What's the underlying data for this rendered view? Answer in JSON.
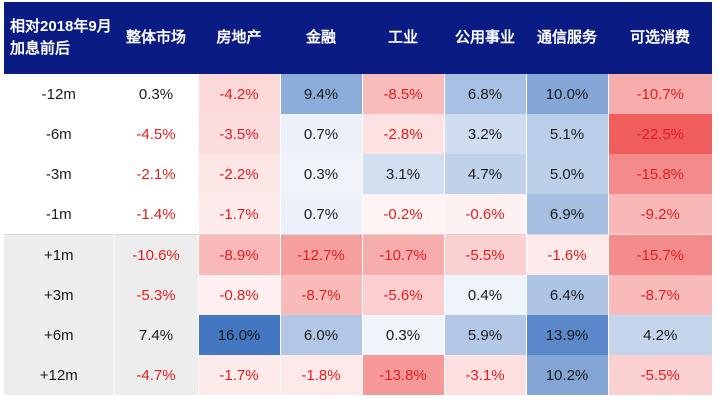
{
  "chart_data": {
    "type": "heatmap",
    "title": "",
    "corner_label": "相对2018年9月加息前后",
    "columns": [
      "整体市场",
      "房地产",
      "金融",
      "工业",
      "公用事业",
      "通信服务",
      "可选消费"
    ],
    "rows": [
      {
        "label": "-12m",
        "values": [
          0.3,
          -4.2,
          9.4,
          -8.5,
          6.8,
          10.0,
          -10.7
        ]
      },
      {
        "label": "-6m",
        "values": [
          -4.5,
          -3.5,
          0.7,
          -2.8,
          3.2,
          5.1,
          -22.5
        ]
      },
      {
        "label": "-3m",
        "values": [
          -2.1,
          -2.2,
          0.3,
          3.1,
          4.7,
          5.0,
          -15.8
        ]
      },
      {
        "label": "-1m",
        "values": [
          -1.4,
          -1.7,
          0.7,
          -0.2,
          -0.6,
          6.9,
          -9.2
        ]
      },
      {
        "label": "+1m",
        "values": [
          -10.6,
          -8.9,
          -12.7,
          -10.7,
          -5.5,
          -1.6,
          -15.7
        ]
      },
      {
        "label": "+3m",
        "values": [
          -5.3,
          -0.8,
          -8.7,
          -5.6,
          0.4,
          6.4,
          -8.7
        ]
      },
      {
        "label": "+6m",
        "values": [
          7.4,
          16.0,
          6.0,
          0.3,
          5.9,
          13.9,
          4.2
        ]
      },
      {
        "label": "+12m",
        "values": [
          -4.7,
          -1.7,
          -1.8,
          -13.8,
          -3.1,
          10.2,
          -5.5
        ]
      }
    ],
    "unit": "%",
    "shaded_rows": [
      "+1m",
      "+3m",
      "+6m",
      "+12m"
    ],
    "color_scale": {
      "neg_max": -22.5,
      "pos_max": 16.0,
      "neg_color": "#f05a5a",
      "pos_color": "#3f74c0",
      "neutral_color": "#ffffff"
    },
    "uncolored_columns": [
      "整体市场"
    ]
  },
  "colors": {
    "header_bg": "#0b1b84",
    "header_text": "#ffffff",
    "neg_text": "#e02020",
    "pos_text": "#1a1a1a",
    "row_label_shade": "#ededed"
  }
}
